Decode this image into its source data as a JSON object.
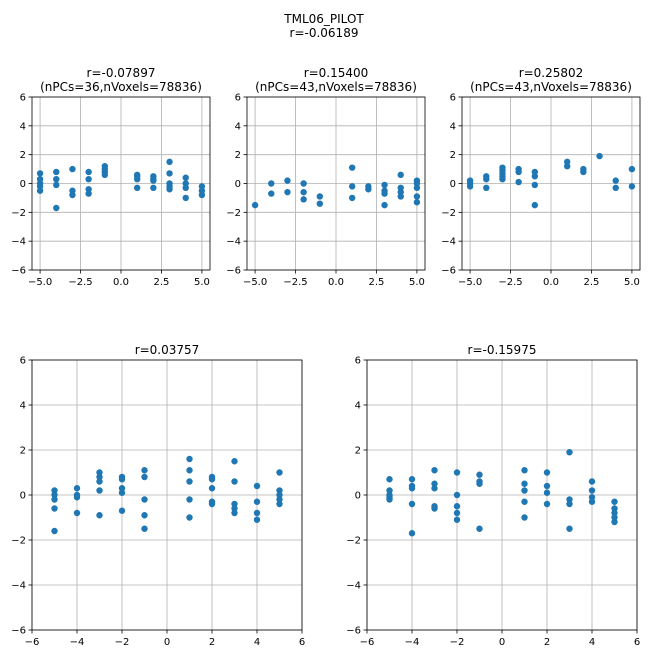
{
  "suptitle": {
    "line1": "TML06_PILOT",
    "line2": "r=-0.06189"
  },
  "colors": {
    "marker": "#1f77b4",
    "grid": "#b0b0b0",
    "axis": "#000000",
    "background": "#ffffff"
  },
  "chart_data": [
    {
      "type": "scatter",
      "title_lines": [
        "r=-0.07897",
        "(nPCs=36,nVoxels=78836)"
      ],
      "xlim": [
        -5.5,
        5.5
      ],
      "ylim": [
        -6,
        6
      ],
      "xticks": [
        -5.0,
        -2.5,
        0.0,
        2.5,
        5.0
      ],
      "xtick_labels": [
        "−5.0",
        "−2.5",
        "0.0",
        "2.5",
        "5.0"
      ],
      "yticks": [
        -6,
        -4,
        -2,
        0,
        2,
        4,
        6
      ],
      "ytick_labels": [
        "−6",
        "−4",
        "−2",
        "0",
        "2",
        "4",
        "6"
      ],
      "grid": true,
      "points": [
        [
          -5,
          0.7
        ],
        [
          -5,
          0.3
        ],
        [
          -5,
          0.0
        ],
        [
          -5,
          -0.2
        ],
        [
          -5,
          -0.5
        ],
        [
          -4,
          0.8
        ],
        [
          -4,
          0.3
        ],
        [
          -4,
          -0.1
        ],
        [
          -4,
          -1.7
        ],
        [
          -3,
          1.0
        ],
        [
          -3,
          -0.5
        ],
        [
          -3,
          -0.8
        ],
        [
          -2,
          0.8
        ],
        [
          -2,
          0.3
        ],
        [
          -2,
          -0.4
        ],
        [
          -2,
          -0.7
        ],
        [
          -1,
          1.2
        ],
        [
          -1,
          1.0
        ],
        [
          -1,
          0.8
        ],
        [
          -1,
          0.6
        ],
        [
          1,
          0.6
        ],
        [
          1,
          0.5
        ],
        [
          1,
          0.3
        ],
        [
          1,
          -0.3
        ],
        [
          2,
          0.5
        ],
        [
          2,
          0.3
        ],
        [
          2,
          0.2
        ],
        [
          2,
          -0.3
        ],
        [
          3,
          1.5
        ],
        [
          3,
          0.7
        ],
        [
          3,
          0.0
        ],
        [
          3,
          -0.2
        ],
        [
          3,
          -0.4
        ],
        [
          4,
          0.4
        ],
        [
          4,
          0.0
        ],
        [
          4,
          -0.3
        ],
        [
          4,
          -1.0
        ],
        [
          5,
          -0.2
        ],
        [
          5,
          -0.5
        ],
        [
          5,
          -0.8
        ]
      ]
    },
    {
      "type": "scatter",
      "title_lines": [
        "r=0.15400",
        "(nPCs=43,nVoxels=78836)"
      ],
      "xlim": [
        -5.5,
        5.5
      ],
      "ylim": [
        -6,
        6
      ],
      "xticks": [
        -5.0,
        -2.5,
        0.0,
        2.5,
        5.0
      ],
      "xtick_labels": [
        "−5.0",
        "−2.5",
        "0.0",
        "2.5",
        "5.0"
      ],
      "yticks": [
        -6,
        -4,
        -2,
        0,
        2,
        4,
        6
      ],
      "ytick_labels": [
        "−6",
        "−4",
        "−2",
        "0",
        "2",
        "4",
        "6"
      ],
      "grid": true,
      "points": [
        [
          -5,
          -1.5
        ],
        [
          -4,
          0.0
        ],
        [
          -4,
          -0.7
        ],
        [
          -3,
          0.2
        ],
        [
          -3,
          -0.6
        ],
        [
          -2,
          0.0
        ],
        [
          -2,
          -0.6
        ],
        [
          -2,
          -1.1
        ],
        [
          -1,
          -0.9
        ],
        [
          -1,
          -1.4
        ],
        [
          1,
          1.1
        ],
        [
          1,
          -0.2
        ],
        [
          1,
          -1.0
        ],
        [
          2,
          -0.2
        ],
        [
          2,
          -0.4
        ],
        [
          3,
          -0.1
        ],
        [
          3,
          -0.5
        ],
        [
          3,
          -0.7
        ],
        [
          3,
          -1.5
        ],
        [
          4,
          0.6
        ],
        [
          4,
          -0.3
        ],
        [
          4,
          -0.6
        ],
        [
          4,
          -0.9
        ],
        [
          5,
          0.2
        ],
        [
          5,
          0.0
        ],
        [
          5,
          -0.3
        ],
        [
          5,
          -0.9
        ],
        [
          5,
          -1.3
        ]
      ]
    },
    {
      "type": "scatter",
      "title_lines": [
        "r=0.25802",
        "(nPCs=43,nVoxels=78836)"
      ],
      "xlim": [
        -5.5,
        5.5
      ],
      "ylim": [
        -6,
        6
      ],
      "xticks": [
        -5.0,
        -2.5,
        0.0,
        2.5,
        5.0
      ],
      "xtick_labels": [
        "−5.0",
        "−2.5",
        "0.0",
        "2.5",
        "5.0"
      ],
      "yticks": [
        -6,
        -4,
        -2,
        0,
        2,
        4,
        6
      ],
      "ytick_labels": [
        "−6",
        "−4",
        "−2",
        "0",
        "2",
        "4",
        "6"
      ],
      "grid": true,
      "points": [
        [
          -5,
          0.2
        ],
        [
          -5,
          0.0
        ],
        [
          -5,
          -0.2
        ],
        [
          -4,
          0.5
        ],
        [
          -4,
          0.3
        ],
        [
          -4,
          -0.3
        ],
        [
          -3,
          1.1
        ],
        [
          -3,
          0.9
        ],
        [
          -3,
          0.7
        ],
        [
          -3,
          0.5
        ],
        [
          -3,
          0.3
        ],
        [
          -2,
          1.0
        ],
        [
          -2,
          0.8
        ],
        [
          -2,
          0.1
        ],
        [
          -1,
          0.8
        ],
        [
          -1,
          0.5
        ],
        [
          -1,
          -0.1
        ],
        [
          -1,
          -1.5
        ],
        [
          1,
          1.5
        ],
        [
          1,
          1.2
        ],
        [
          2,
          1.0
        ],
        [
          2,
          0.8
        ],
        [
          3,
          1.9
        ],
        [
          4,
          0.2
        ],
        [
          4,
          -0.3
        ],
        [
          5,
          1.0
        ],
        [
          5,
          -0.2
        ]
      ]
    },
    {
      "type": "scatter",
      "title_lines": [
        "r=0.03757"
      ],
      "xlim": [
        -6,
        6
      ],
      "ylim": [
        -6,
        6
      ],
      "xticks": [
        -6,
        -4,
        -2,
        0,
        2,
        4,
        6
      ],
      "xtick_labels": [
        "−6",
        "−4",
        "−2",
        "0",
        "2",
        "4",
        "6"
      ],
      "yticks": [
        -6,
        -4,
        -2,
        0,
        2,
        4,
        6
      ],
      "ytick_labels": [
        "−6",
        "−4",
        "−2",
        "0",
        "2",
        "4",
        "6"
      ],
      "grid": true,
      "points": [
        [
          -5,
          0.2
        ],
        [
          -5,
          0.0
        ],
        [
          -5,
          -0.2
        ],
        [
          -5,
          -0.6
        ],
        [
          -5,
          -1.6
        ],
        [
          -4,
          0.3
        ],
        [
          -4,
          0.0
        ],
        [
          -4,
          -0.1
        ],
        [
          -4,
          -0.8
        ],
        [
          -3,
          1.0
        ],
        [
          -3,
          0.8
        ],
        [
          -3,
          0.6
        ],
        [
          -3,
          0.2
        ],
        [
          -3,
          -0.9
        ],
        [
          -2,
          0.8
        ],
        [
          -2,
          0.7
        ],
        [
          -2,
          0.3
        ],
        [
          -2,
          0.1
        ],
        [
          -2,
          -0.7
        ],
        [
          -1,
          1.1
        ],
        [
          -1,
          0.8
        ],
        [
          -1,
          -0.2
        ],
        [
          -1,
          -0.9
        ],
        [
          -1,
          -1.5
        ],
        [
          1,
          1.6
        ],
        [
          1,
          1.1
        ],
        [
          1,
          0.6
        ],
        [
          1,
          -0.2
        ],
        [
          1,
          -1.0
        ],
        [
          2,
          0.8
        ],
        [
          2,
          0.7
        ],
        [
          2,
          0.3
        ],
        [
          2,
          -0.3
        ],
        [
          2,
          -0.4
        ],
        [
          3,
          1.5
        ],
        [
          3,
          0.6
        ],
        [
          3,
          -0.4
        ],
        [
          3,
          -0.6
        ],
        [
          3,
          -0.8
        ],
        [
          4,
          0.4
        ],
        [
          4,
          -0.3
        ],
        [
          4,
          -0.8
        ],
        [
          4,
          -1.1
        ],
        [
          5,
          1.0
        ],
        [
          5,
          0.2
        ],
        [
          5,
          0.0
        ],
        [
          5,
          -0.2
        ],
        [
          5,
          -0.4
        ]
      ]
    },
    {
      "type": "scatter",
      "title_lines": [
        "r=-0.15975"
      ],
      "xlim": [
        -6,
        6
      ],
      "ylim": [
        -6,
        6
      ],
      "xticks": [
        -6,
        -4,
        -2,
        0,
        2,
        4,
        6
      ],
      "xtick_labels": [
        "−6",
        "−4",
        "−2",
        "0",
        "2",
        "4",
        "6"
      ],
      "yticks": [
        -6,
        -4,
        -2,
        0,
        2,
        4,
        6
      ],
      "ytick_labels": [
        "−6",
        "−4",
        "−2",
        "0",
        "2",
        "4",
        "6"
      ],
      "grid": true,
      "points": [
        [
          -5,
          0.7
        ],
        [
          -5,
          0.2
        ],
        [
          -5,
          0.0
        ],
        [
          -5,
          -0.1
        ],
        [
          -5,
          -0.2
        ],
        [
          -4,
          0.7
        ],
        [
          -4,
          0.4
        ],
        [
          -4,
          0.3
        ],
        [
          -4,
          -0.4
        ],
        [
          -4,
          -1.7
        ],
        [
          -3,
          1.1
        ],
        [
          -3,
          0.5
        ],
        [
          -3,
          0.3
        ],
        [
          -3,
          -0.5
        ],
        [
          -3,
          -0.6
        ],
        [
          -2,
          1.0
        ],
        [
          -2,
          0.0
        ],
        [
          -2,
          -0.5
        ],
        [
          -2,
          -0.8
        ],
        [
          -2,
          -1.1
        ],
        [
          -1,
          0.9
        ],
        [
          -1,
          0.6
        ],
        [
          -1,
          0.5
        ],
        [
          -1,
          -1.5
        ],
        [
          1,
          1.1
        ],
        [
          1,
          0.5
        ],
        [
          1,
          0.2
        ],
        [
          1,
          -0.3
        ],
        [
          1,
          -1.0
        ],
        [
          2,
          1.0
        ],
        [
          2,
          0.4
        ],
        [
          2,
          0.1
        ],
        [
          2,
          -0.4
        ],
        [
          3,
          1.9
        ],
        [
          3,
          -0.2
        ],
        [
          3,
          -0.4
        ],
        [
          3,
          -1.5
        ],
        [
          4,
          0.6
        ],
        [
          4,
          0.2
        ],
        [
          4,
          -0.1
        ],
        [
          4,
          -0.3
        ],
        [
          5,
          -0.3
        ],
        [
          5,
          -0.6
        ],
        [
          5,
          -0.8
        ],
        [
          5,
          -1.0
        ],
        [
          5,
          -1.2
        ]
      ]
    }
  ]
}
